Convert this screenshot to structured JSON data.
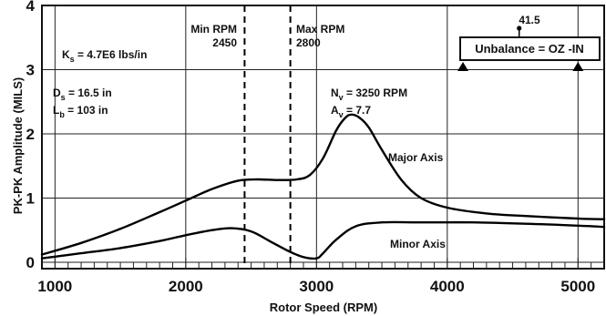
{
  "chart_data": {
    "type": "line",
    "xlabel": "Rotor Speed (RPM)",
    "ylabel": "PK-PK Amplitude (MILS)",
    "xlim": [
      900,
      5200
    ],
    "ylim": [
      -0.1,
      4.0
    ],
    "x_ticks": [
      "1000",
      "2000",
      "3000",
      "4000",
      "5000"
    ],
    "y_ticks": [
      "0",
      "1",
      "2",
      "3",
      "4"
    ],
    "grid": true,
    "series": [
      {
        "name": "Major Axis",
        "x": [
          900,
          1200,
          1500,
          1800,
          2000,
          2200,
          2400,
          2550,
          2700,
          2850,
          2950,
          3050,
          3150,
          3220,
          3270,
          3330,
          3400,
          3500,
          3650,
          3800,
          4000,
          4300,
          4600,
          5000,
          5200
        ],
        "y": [
          0.12,
          0.3,
          0.52,
          0.78,
          0.96,
          1.14,
          1.27,
          1.29,
          1.28,
          1.29,
          1.36,
          1.62,
          2.05,
          2.25,
          2.3,
          2.25,
          2.1,
          1.75,
          1.28,
          1.0,
          0.85,
          0.76,
          0.72,
          0.68,
          0.67
        ]
      },
      {
        "name": "Minor Axis",
        "x": [
          900,
          1200,
          1500,
          1800,
          2000,
          2200,
          2350,
          2500,
          2650,
          2800,
          2900,
          3000,
          3050,
          3150,
          3300,
          3500,
          3800,
          4200,
          4600,
          5000,
          5200
        ],
        "y": [
          0.06,
          0.14,
          0.22,
          0.33,
          0.42,
          0.5,
          0.53,
          0.48,
          0.32,
          0.16,
          0.08,
          0.06,
          0.14,
          0.35,
          0.56,
          0.62,
          0.62,
          0.62,
          0.6,
          0.57,
          0.55
        ]
      }
    ],
    "vlines": [
      {
        "x": 2450,
        "label": "Min RPM",
        "value": "2450"
      },
      {
        "x": 2800,
        "label": "Max RPM",
        "value": "2800"
      }
    ],
    "annotations": {
      "ks": {
        "main": "K",
        "sub": "s",
        "rest": " = 4.7E6 lbs/in"
      },
      "ds": {
        "main": "D",
        "sub": "s",
        "rest": " = 16.5 in"
      },
      "lb": {
        "main": "L",
        "sub": "b",
        "rest": " = 103 in"
      },
      "nv": {
        "main": "N",
        "sub": "v",
        "rest": " = 3250 RPM"
      },
      "av": {
        "main": "A",
        "sub": "v",
        "rest": " = 7.7"
      },
      "major_label": "Major Axis",
      "minor_label": "Minor Axis"
    },
    "unbalance": {
      "box_text": "Unbalance = OZ -IN",
      "value": "41.5",
      "marker_x": 4550,
      "triangle_x": [
        4120,
        5000
      ]
    }
  }
}
